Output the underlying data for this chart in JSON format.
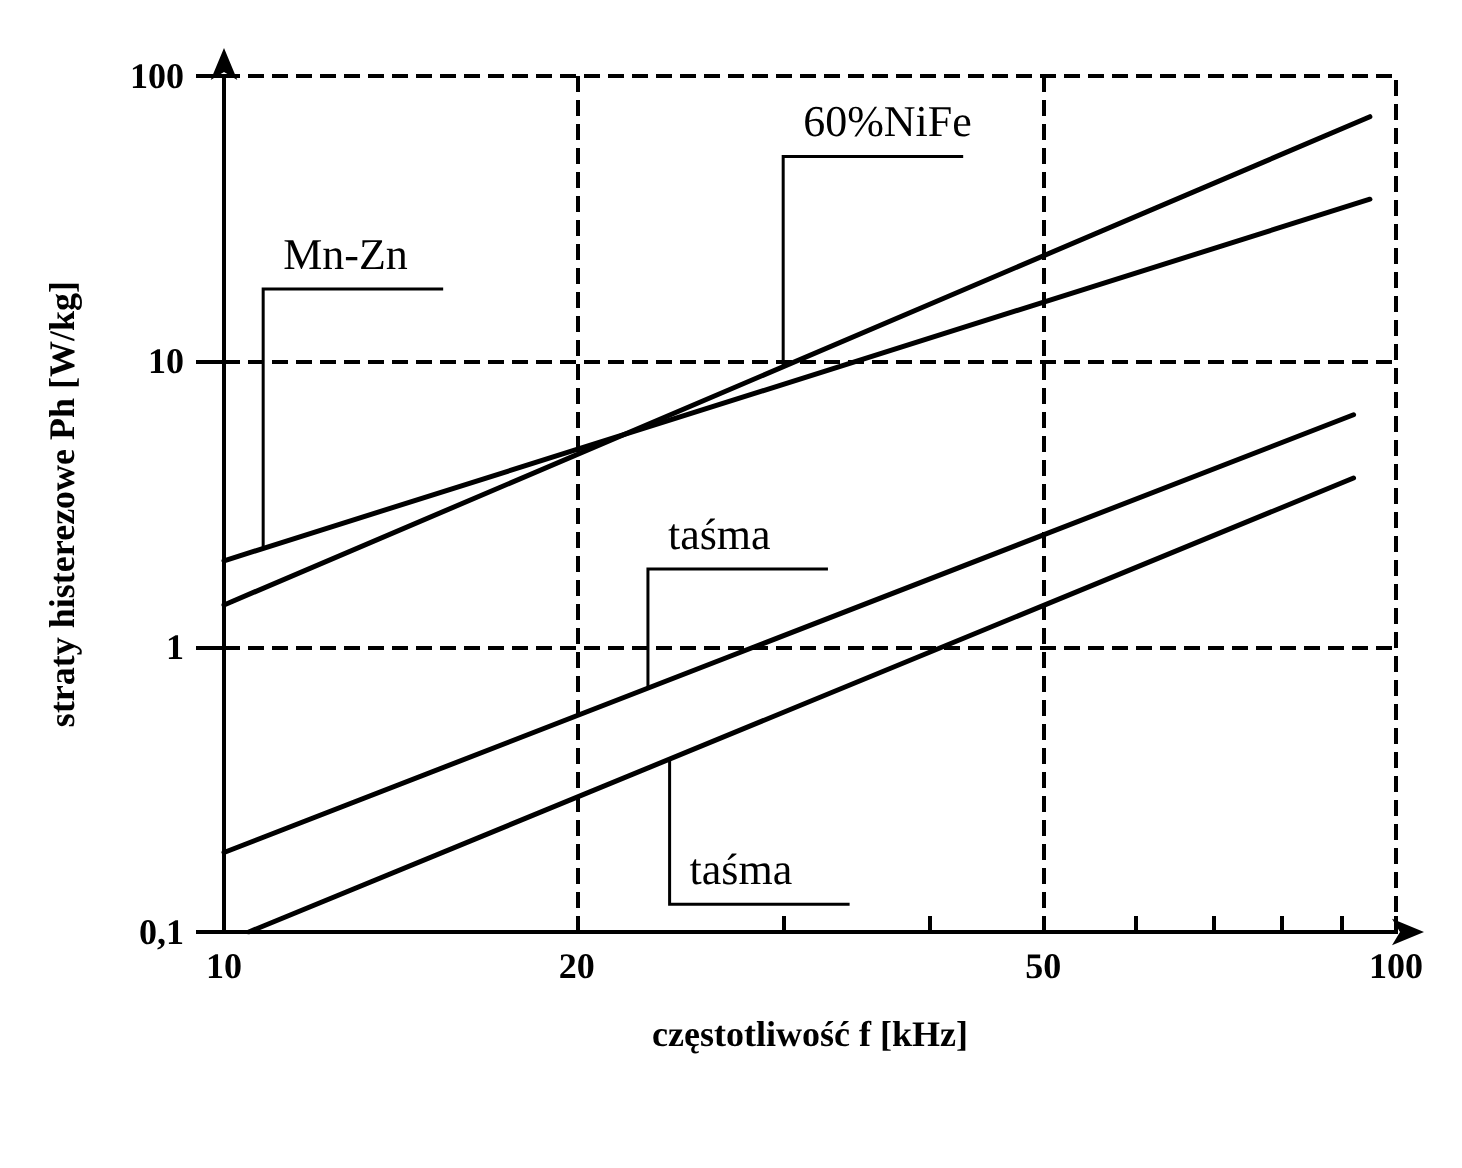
{
  "chart_data": {
    "type": "line",
    "xlabel": "częstotliwość f [kHz]",
    "ylabel": "straty histerezowe Ph [W/kg]",
    "log": "xy",
    "grid": false,
    "marker": "none",
    "line_style": "solid",
    "xlim": [
      10,
      100
    ],
    "ylim": [
      0.1,
      100
    ],
    "xticks": [
      10,
      20,
      {
        "value": 30,
        "label": null
      },
      {
        "value": 40,
        "label": null
      },
      50,
      {
        "value": 60,
        "label": null
      },
      {
        "value": 70,
        "label": null
      },
      {
        "value": 80,
        "label": null
      },
      {
        "value": 90,
        "label": null
      },
      100
    ],
    "yticks": [
      {
        "value": 0.1,
        "label": "0,1"
      },
      1,
      10,
      100
    ],
    "series": [
      {
        "color": "#000000",
        "x": [
          10,
          95
        ],
        "values": [
          2.0,
          37
        ]
      },
      {
        "color": "#000000",
        "x": [
          10,
          95
        ],
        "values": [
          1.4,
          72
        ]
      },
      {
        "color": "#000000",
        "x": [
          10,
          92
        ],
        "values": [
          0.19,
          6.5
        ]
      },
      {
        "color": "#000000",
        "x": [
          10.5,
          92
        ],
        "values": [
          0.1,
          3.9
        ]
      }
    ],
    "ref_lines": [
      {
        "axis": "x",
        "value": 20,
        "color": "#000000",
        "line_style": "dashed"
      },
      {
        "axis": "x",
        "value": 50,
        "color": "#000000",
        "line_style": "dashed"
      },
      {
        "axis": "y",
        "value": 1,
        "color": "#000000",
        "line_style": "dashed"
      },
      {
        "axis": "y",
        "value": 10,
        "color": "#000000",
        "line_style": "dashed"
      }
    ],
    "annotations": [
      {
        "text": "Mn-Zn",
        "x": 10.8,
        "y": 2.2
      },
      {
        "text": "60%NiFe",
        "x": 30,
        "y": 9.6
      },
      {
        "text": "taśma",
        "x": 23,
        "y": 0.71
      },
      {
        "text": "taśma",
        "x": 24,
        "y": 0.4
      }
    ]
  }
}
